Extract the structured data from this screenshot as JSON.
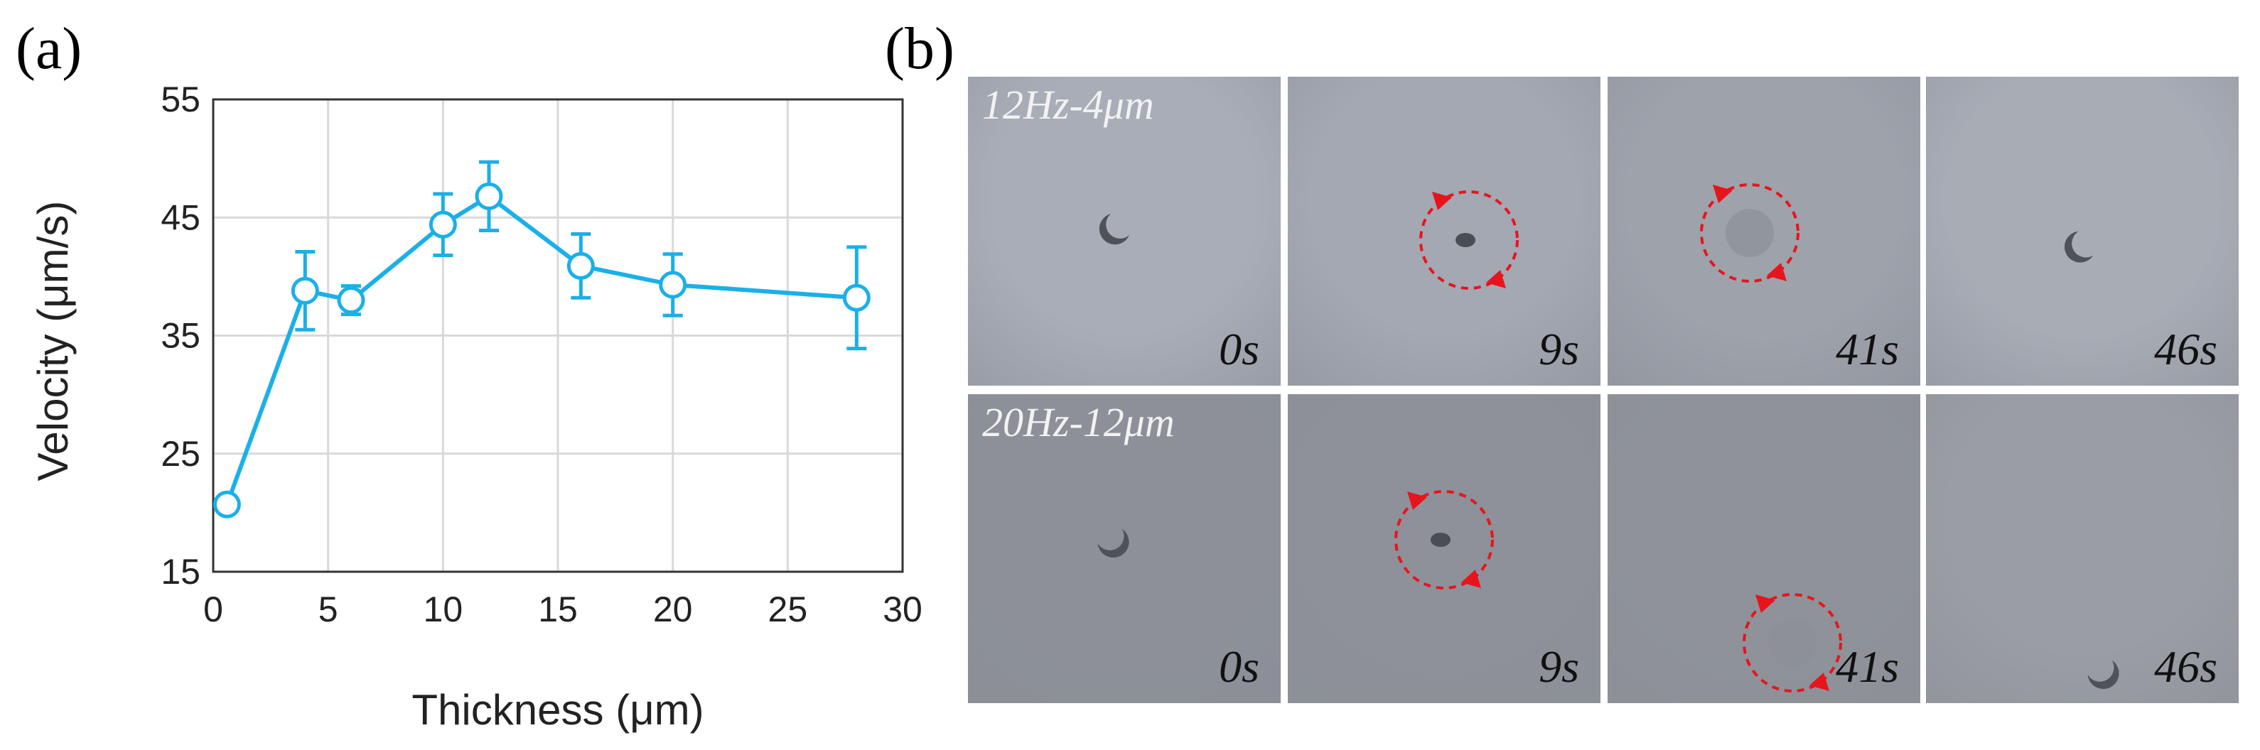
{
  "panels": {
    "a_label": "(a)",
    "b_label": "(b)"
  },
  "chart_data": {
    "type": "line",
    "title": "",
    "xlabel": "Thickness (μm)",
    "ylabel": "Velocity (μm/s)",
    "xlim": [
      0,
      30
    ],
    "ylim": [
      15,
      55
    ],
    "x_ticks": [
      0,
      5,
      10,
      15,
      20,
      25,
      30
    ],
    "y_ticks": [
      15,
      25,
      35,
      45,
      55
    ],
    "grid": true,
    "series": [
      {
        "color": "#1ab0e8",
        "marker": "open-circle",
        "points": [
          {
            "x": 0.6,
            "y": 20.7,
            "err": 0.6
          },
          {
            "x": 4,
            "y": 38.8,
            "err": 3.3
          },
          {
            "x": 6,
            "y": 38.0,
            "err": 1.2
          },
          {
            "x": 10,
            "y": 44.4,
            "err": 2.6
          },
          {
            "x": 12,
            "y": 46.8,
            "err": 2.9
          },
          {
            "x": 16,
            "y": 40.9,
            "err": 2.7
          },
          {
            "x": 20,
            "y": 39.3,
            "err": 2.6
          },
          {
            "x": 28,
            "y": 38.2,
            "err": 4.3
          }
        ]
      }
    ]
  },
  "micrographs": {
    "rows": [
      {
        "caption": "12Hz-4μm",
        "times": [
          "0s",
          "9s",
          "41s",
          "46s"
        ]
      },
      {
        "caption": "20Hz-12μm",
        "times": [
          "0s",
          "9s",
          "41s",
          "46s"
        ]
      }
    ],
    "arrow_color": "#e8141c"
  }
}
